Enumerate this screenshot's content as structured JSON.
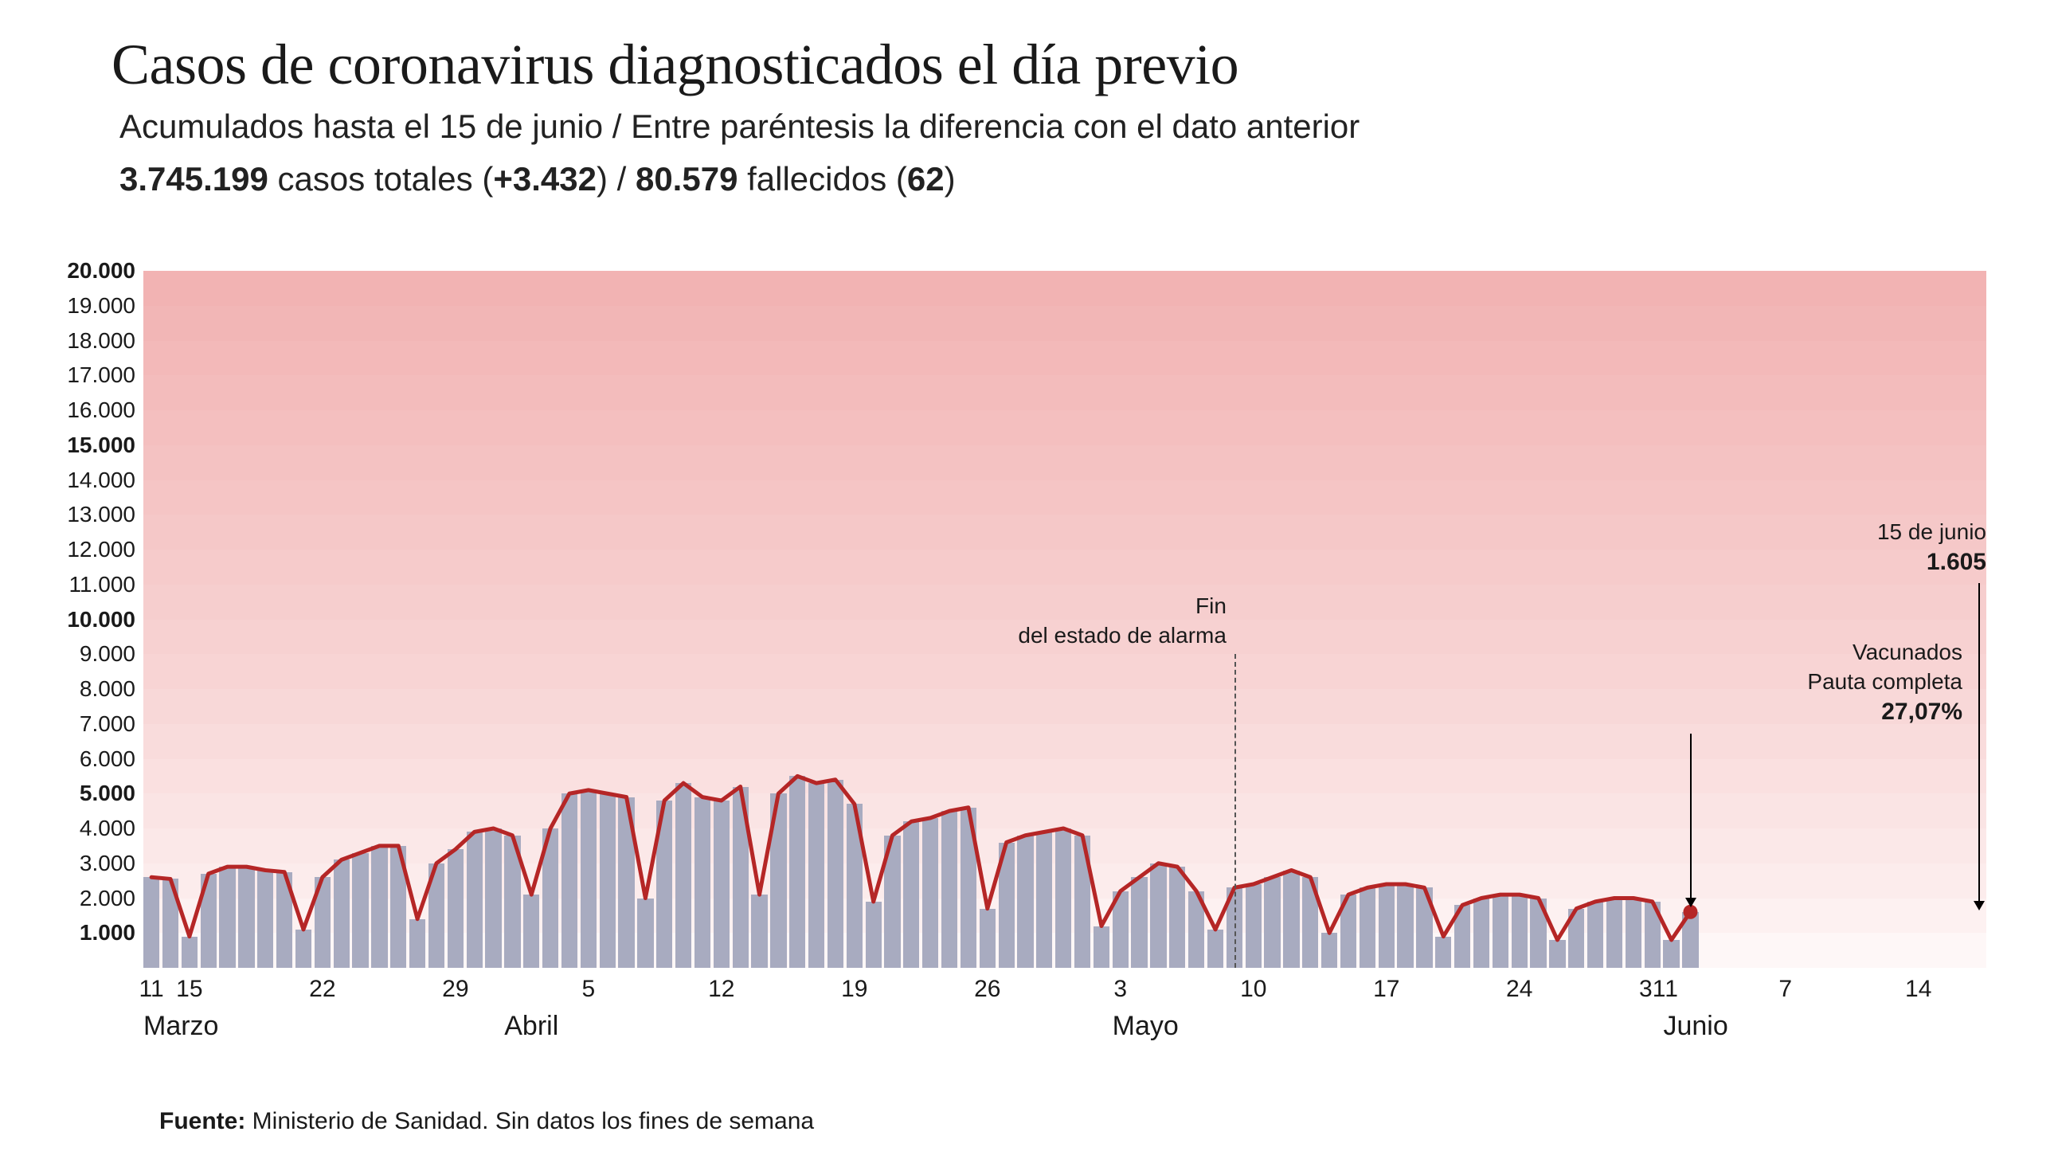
{
  "header": {
    "title": "Casos de coronavirus diagnosticados el día previo",
    "subtitle": "Acumulados hasta el 15 de junio / Entre paréntesis la diferencia con el dato anterior",
    "summary_cases_total": "3.745.199",
    "summary_cases_label": " casos totales (",
    "summary_cases_delta": "+3.432",
    "summary_sep": ") / ",
    "summary_deaths_total": "80.579",
    "summary_deaths_label": " fallecidos (",
    "summary_deaths_delta": "62",
    "summary_close": ")"
  },
  "footer": {
    "source_label": "Fuente: ",
    "source_text": "Ministerio de Sanidad. Sin datos los fines de semana"
  },
  "chart": {
    "type": "bar+line",
    "ylim": [
      0,
      20000
    ],
    "ytick_step": 1000,
    "ytick_bold": [
      1000,
      5000,
      10000,
      15000,
      20000
    ],
    "yticks": [
      20000,
      19000,
      18000,
      17000,
      16000,
      15000,
      14000,
      13000,
      12000,
      11000,
      10000,
      9000,
      8000,
      7000,
      6000,
      5000,
      4000,
      3000,
      2000,
      1000
    ],
    "bands": [
      {
        "from": 19000,
        "to": 20000,
        "color": "#f2b3b3"
      },
      {
        "from": 18000,
        "to": 19000,
        "color": "#f2b6b6"
      },
      {
        "from": 17000,
        "to": 18000,
        "color": "#f3b9b9"
      },
      {
        "from": 16000,
        "to": 17000,
        "color": "#f3bcbc"
      },
      {
        "from": 15000,
        "to": 16000,
        "color": "#f4bfbf"
      },
      {
        "from": 14000,
        "to": 15000,
        "color": "#f4c2c2"
      },
      {
        "from": 13000,
        "to": 14000,
        "color": "#f5c5c5"
      },
      {
        "from": 12000,
        "to": 13000,
        "color": "#f5c8c8"
      },
      {
        "from": 11000,
        "to": 12000,
        "color": "#f6cbcb"
      },
      {
        "from": 10000,
        "to": 11000,
        "color": "#f6cece"
      },
      {
        "from": 9000,
        "to": 10000,
        "color": "#f7d1d1"
      },
      {
        "from": 8000,
        "to": 9000,
        "color": "#f8d4d4"
      },
      {
        "from": 7000,
        "to": 8000,
        "color": "#f8d8d8"
      },
      {
        "from": 6000,
        "to": 7000,
        "color": "#f9dcdc"
      },
      {
        "from": 5000,
        "to": 6000,
        "color": "#fae0e0"
      },
      {
        "from": 4000,
        "to": 5000,
        "color": "#fae4e4"
      },
      {
        "from": 3000,
        "to": 4000,
        "color": "#fbe8e8"
      },
      {
        "from": 2000,
        "to": 3000,
        "color": "#fcecec"
      },
      {
        "from": 1000,
        "to": 2000,
        "color": "#fdf1f1"
      },
      {
        "from": 0,
        "to": 1000,
        "color": "#fef7f7"
      }
    ],
    "bar_color": "#a8abc0",
    "bar_gap_ratio": 0.15,
    "line_color": "#b52626",
    "line_width": 5,
    "marker_last": {
      "color": "#b52626",
      "radius": 9
    },
    "values": [
      2600,
      2550,
      900,
      2700,
      2900,
      2900,
      2800,
      2750,
      1100,
      2600,
      3100,
      3300,
      3500,
      3500,
      1400,
      3000,
      3400,
      3900,
      4000,
      3800,
      2100,
      4000,
      5000,
      5100,
      5000,
      4900,
      2000,
      4800,
      5300,
      4900,
      4800,
      5200,
      2100,
      5000,
      5500,
      5300,
      5400,
      4700,
      1900,
      3800,
      4200,
      4300,
      4500,
      4600,
      1700,
      3600,
      3800,
      3900,
      4000,
      3800,
      1200,
      2200,
      2600,
      3000,
      2900,
      2200,
      1100,
      2300,
      2400,
      2600,
      2800,
      2600,
      1000,
      2100,
      2300,
      2400,
      2400,
      2300,
      900,
      1800,
      2000,
      2100,
      2100,
      2000,
      800,
      1700,
      1900,
      2000,
      2000,
      1900,
      800,
      1605
    ],
    "x_ticks": [
      {
        "idx": 0,
        "label": "11"
      },
      {
        "idx": 2,
        "label": "15"
      },
      {
        "idx": 9,
        "label": "22"
      },
      {
        "idx": 16,
        "label": "29"
      },
      {
        "idx": 23,
        "label": "5"
      },
      {
        "idx": 30,
        "label": "12"
      },
      {
        "idx": 37,
        "label": "19"
      },
      {
        "idx": 44,
        "label": "26"
      },
      {
        "idx": 51,
        "label": "3"
      },
      {
        "idx": 58,
        "label": "10"
      },
      {
        "idx": 65,
        "label": "17"
      },
      {
        "idx": 72,
        "label": "24"
      },
      {
        "idx": 79,
        "label": "31"
      },
      {
        "idx": 80,
        "label": "1"
      },
      {
        "idx": 86,
        "label": "7"
      },
      {
        "idx": 93,
        "label": "14"
      }
    ],
    "x_range_days": 97,
    "x_months": [
      {
        "idx": 0,
        "label": "Marzo"
      },
      {
        "idx": 19,
        "label": "Abril"
      },
      {
        "idx": 51,
        "label": "Mayo"
      },
      {
        "idx": 80,
        "label": "Junio"
      }
    ],
    "annotations": {
      "fin_alarma": {
        "idx": 57,
        "text_line1": "Fin",
        "text_line2": "del estado de alarma",
        "y_from": 9000
      },
      "last_point": {
        "date_label": "15 de junio",
        "value_label": "1.605",
        "vac_line1": "Vacunados",
        "vac_line2": "Pauta completa",
        "vac_value": "27,07%"
      }
    }
  }
}
